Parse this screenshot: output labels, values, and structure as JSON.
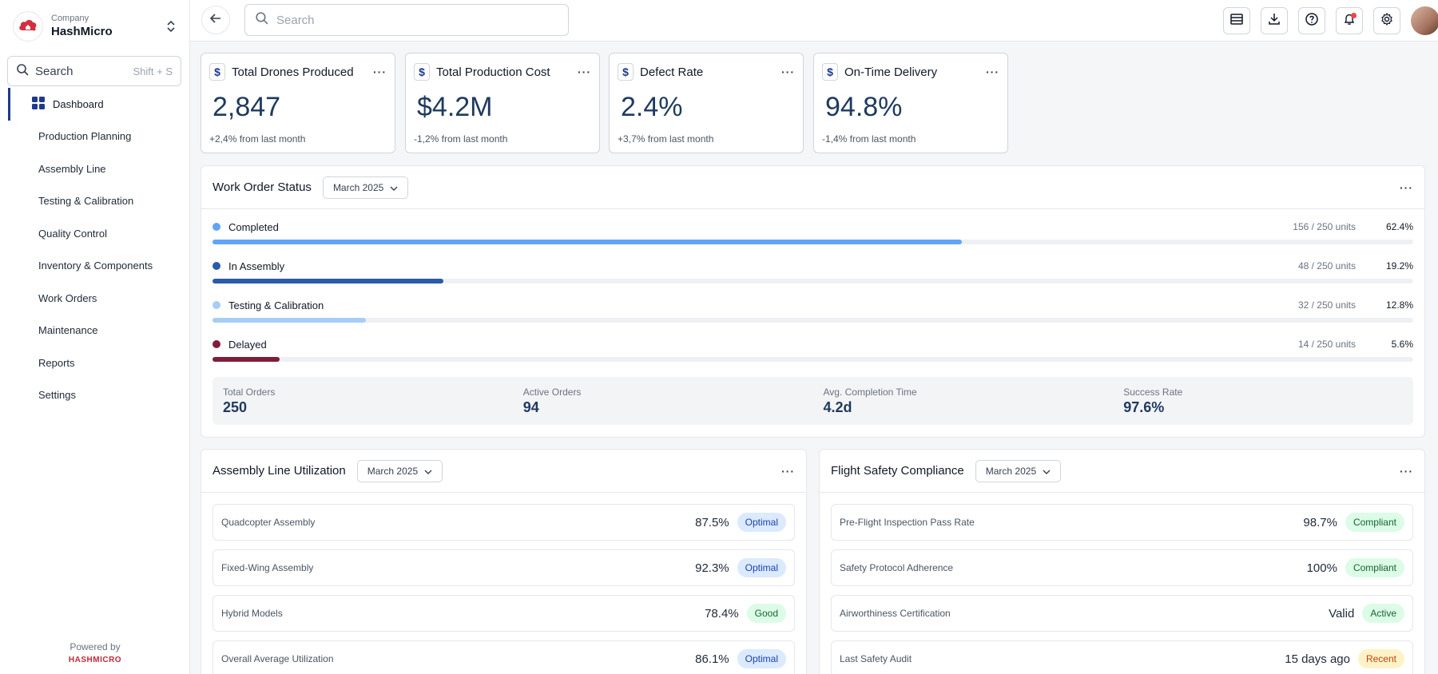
{
  "company": {
    "label": "Company",
    "name": "HashMicro"
  },
  "sidebar_search": {
    "placeholder": "Search",
    "shortcut": "Shift + S"
  },
  "nav": [
    {
      "label": "Dashboard",
      "active": true
    },
    {
      "label": "Production Planning"
    },
    {
      "label": "Assembly Line"
    },
    {
      "label": "Testing & Calibration"
    },
    {
      "label": "Quality Control"
    },
    {
      "label": "Inventory & Components"
    },
    {
      "label": "Work Orders"
    },
    {
      "label": "Maintenance"
    },
    {
      "label": "Reports"
    },
    {
      "label": "Settings"
    }
  ],
  "powered": {
    "label": "Powered by",
    "brand": "HASHMICRO"
  },
  "top_search": {
    "placeholder": "Search"
  },
  "kpis": [
    {
      "title": "Total Drones Produced",
      "value": "2,847",
      "change": "+2,4% from last month"
    },
    {
      "title": "Total Production Cost",
      "value": "$4.2M",
      "change": "-1,2% from last month"
    },
    {
      "title": "Defect Rate",
      "value": "2.4%",
      "change": "+3,7% from last month"
    },
    {
      "title": "On-Time Delivery",
      "value": "94.8%",
      "change": "-1,4% from last month"
    }
  ],
  "work_orders": {
    "title": "Work Order Status",
    "month": "March 2025",
    "statuses": [
      {
        "label": "Completed",
        "units": "156 / 250 units",
        "pct": "62.4%",
        "fraction": 0.624,
        "color": "#60a5fa"
      },
      {
        "label": "In Assembly",
        "units": "48 / 250 units",
        "pct": "19.2%",
        "fraction": 0.192,
        "color": "#2b5aa8"
      },
      {
        "label": "Testing & Calibration",
        "units": "32 / 250 units",
        "pct": "12.8%",
        "fraction": 0.128,
        "color": "#a7cdf5"
      },
      {
        "label": "Delayed",
        "units": "14 / 250 units",
        "pct": "5.6%",
        "fraction": 0.056,
        "color": "#7f1d3a"
      }
    ],
    "summary": [
      {
        "label": "Total Orders",
        "value": "250"
      },
      {
        "label": "Active Orders",
        "value": "94"
      },
      {
        "label": "Avg. Completion Time",
        "value": "4.2d"
      },
      {
        "label": "Success Rate",
        "value": "97.6%"
      }
    ]
  },
  "assembly": {
    "title": "Assembly Line Utilization",
    "month": "March 2025",
    "rows": [
      {
        "label": "Quadcopter Assembly",
        "value": "87.5%",
        "badge": "Optimal",
        "tone": "blue"
      },
      {
        "label": "Fixed-Wing Assembly",
        "value": "92.3%",
        "badge": "Optimal",
        "tone": "blue"
      },
      {
        "label": "Hybrid Models",
        "value": "78.4%",
        "badge": "Good",
        "tone": "green"
      },
      {
        "label": "Overall Average Utilization",
        "value": "86.1%",
        "badge": "Optimal",
        "tone": "blue"
      }
    ]
  },
  "safety": {
    "title": "Flight Safety Compliance",
    "month": "March 2025",
    "rows": [
      {
        "label": "Pre-Flight Inspection Pass Rate",
        "value": "98.7%",
        "badge": "Compliant",
        "tone": "green"
      },
      {
        "label": "Safety Protocol Adherence",
        "value": "100%",
        "badge": "Compliant",
        "tone": "green"
      },
      {
        "label": "Airworthiness Certification",
        "value": "Valid",
        "badge": "Active",
        "tone": "green"
      },
      {
        "label": "Last Safety Audit",
        "value": "15 days ago",
        "badge": "Recent",
        "tone": "orange"
      }
    ]
  },
  "icons": {
    "back": "arrow-left-icon",
    "search": "search-icon",
    "actions": [
      "table-icon",
      "download-icon",
      "help-icon",
      "bell-icon",
      "gear-icon"
    ]
  }
}
